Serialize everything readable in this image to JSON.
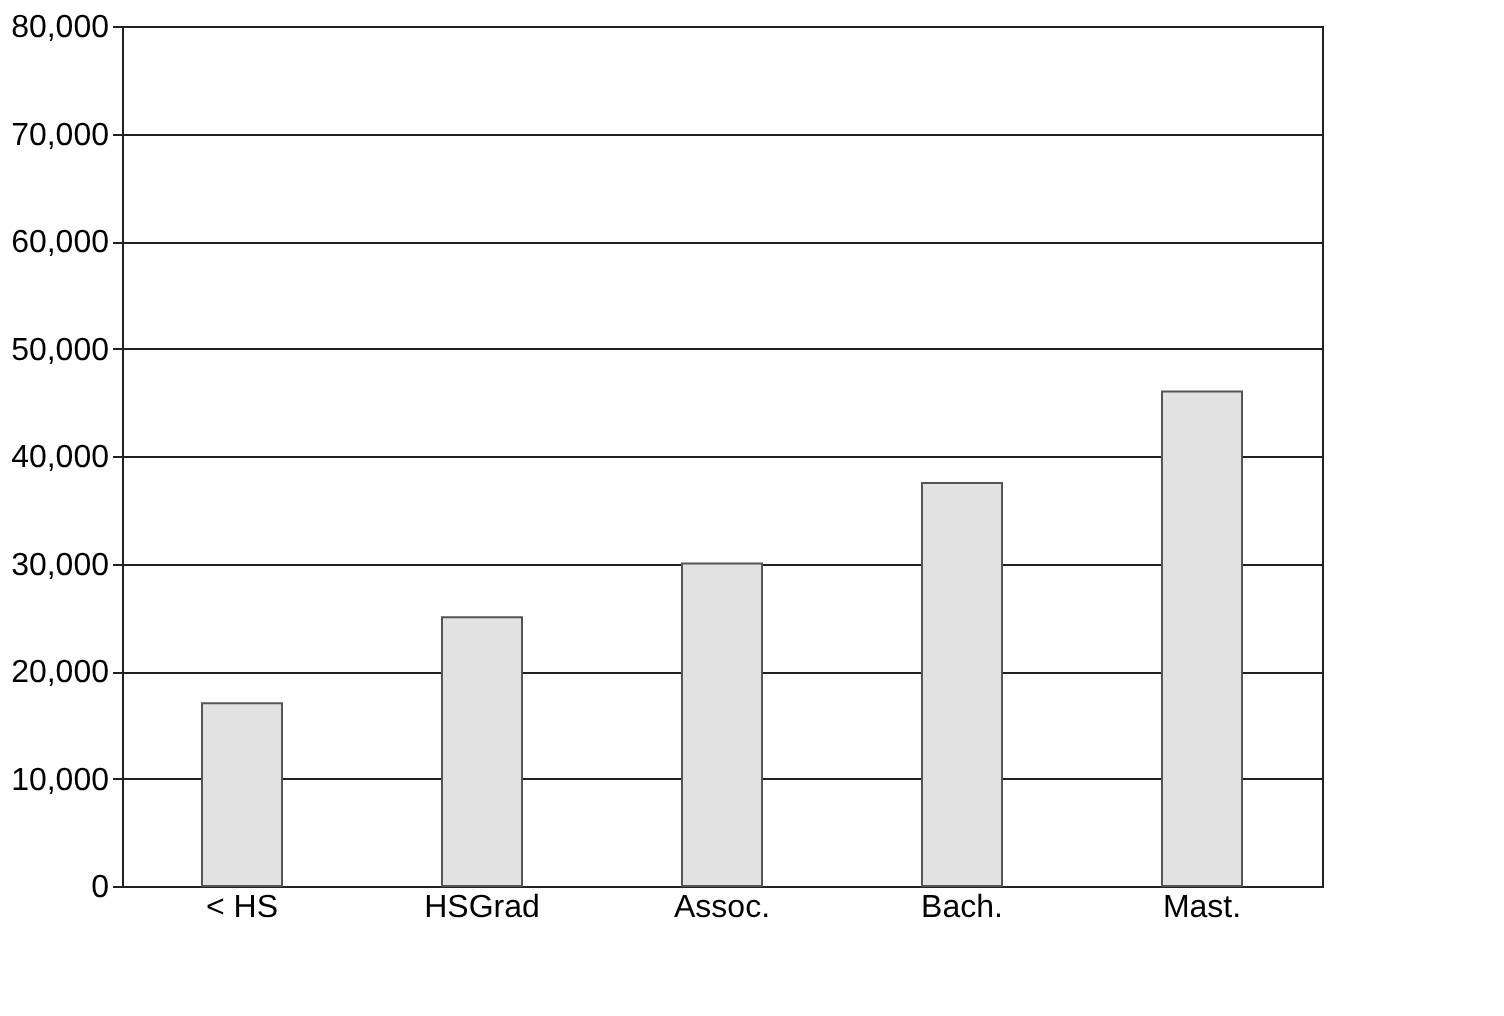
{
  "chart_data": {
    "type": "bar",
    "categories": [
      "< HS",
      "HSGrad",
      "Assoc.",
      "Bach.",
      "Mast."
    ],
    "values": [
      17000,
      25000,
      30000,
      37500,
      46000
    ],
    "color": "#e2e2e2",
    "ylim": [
      0,
      80000
    ],
    "yticks": [
      0,
      {
        "value": 10000,
        "label": "10,000"
      },
      {
        "value": 20000,
        "label": "20,000"
      },
      {
        "value": 30000,
        "label": "30,000"
      },
      {
        "value": 40000,
        "label": "40,000"
      },
      {
        "value": 50000,
        "label": "50,000"
      },
      {
        "value": 60000,
        "label": "60,000"
      },
      {
        "value": 70000,
        "label": "70,000"
      },
      {
        "value": 80000,
        "label": "80,000"
      }
    ],
    "grid": "y"
  }
}
